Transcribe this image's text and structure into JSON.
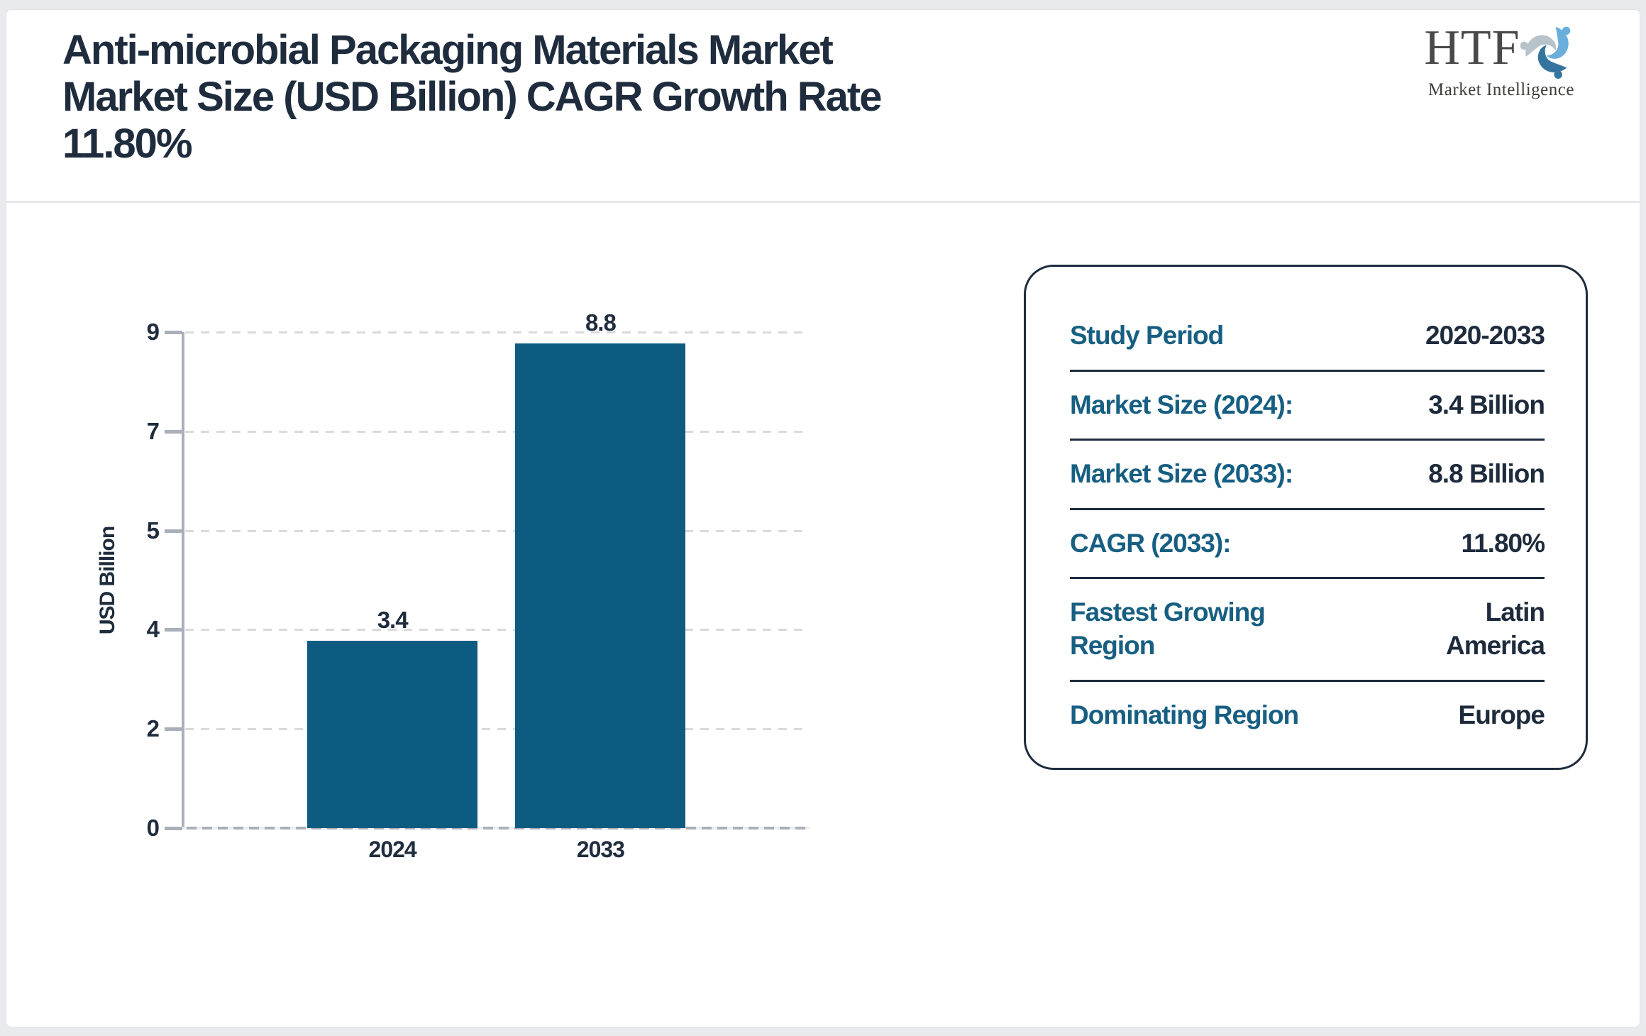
{
  "header": {
    "title_lines": [
      "Anti-microbial Packaging Materials Market",
      "Market Size (USD Billion) CAGR Growth Rate",
      "11.80%"
    ],
    "logo_text": "HTF",
    "logo_subtext": "Market Intelligence"
  },
  "chart_data": {
    "type": "bar",
    "title": "Anti-microbial Packaging Materials Market Market Size (USD Billion) CAGR Growth Rate 11.80%",
    "categories": [
      "2024",
      "2033"
    ],
    "values": [
      3.4,
      8.8
    ],
    "bar_labels": [
      "3.4",
      "8.8"
    ],
    "xlabel": "",
    "ylabel": "USD Billion",
    "yticks": [
      0,
      2,
      4,
      5,
      7,
      9
    ],
    "ylim": [
      0,
      9
    ],
    "grid": "horizontal-dashed",
    "legend": "none",
    "bar_color": "#0e5b82"
  },
  "info_panel": {
    "rows": [
      {
        "label": "Study Period",
        "value": "2020-2033"
      },
      {
        "label": "Market Size (2024):",
        "value": "3.4 Billion"
      },
      {
        "label": "Market Size (2033):",
        "value": "8.8 Billion"
      },
      {
        "label": "CAGR (2033):",
        "value": "11.80%"
      },
      {
        "label": "Fastest Growing Region",
        "value": "Latin America"
      },
      {
        "label": "Dominating Region",
        "value": "Europe"
      }
    ]
  },
  "colors": {
    "bar": "#0e5b82",
    "label_teal": "#175f82",
    "text_navy": "#1f2c3d",
    "axis_gray": "#a9b0ba",
    "gridline": "#dadada",
    "panel_border": "#1e2c3e",
    "page_background": "#e9eaed",
    "card_background": "#ffffff",
    "logo_blue_light": "#6aaedc",
    "logo_blue_dark": "#35749f",
    "logo_gray": "#b7c2ca"
  }
}
